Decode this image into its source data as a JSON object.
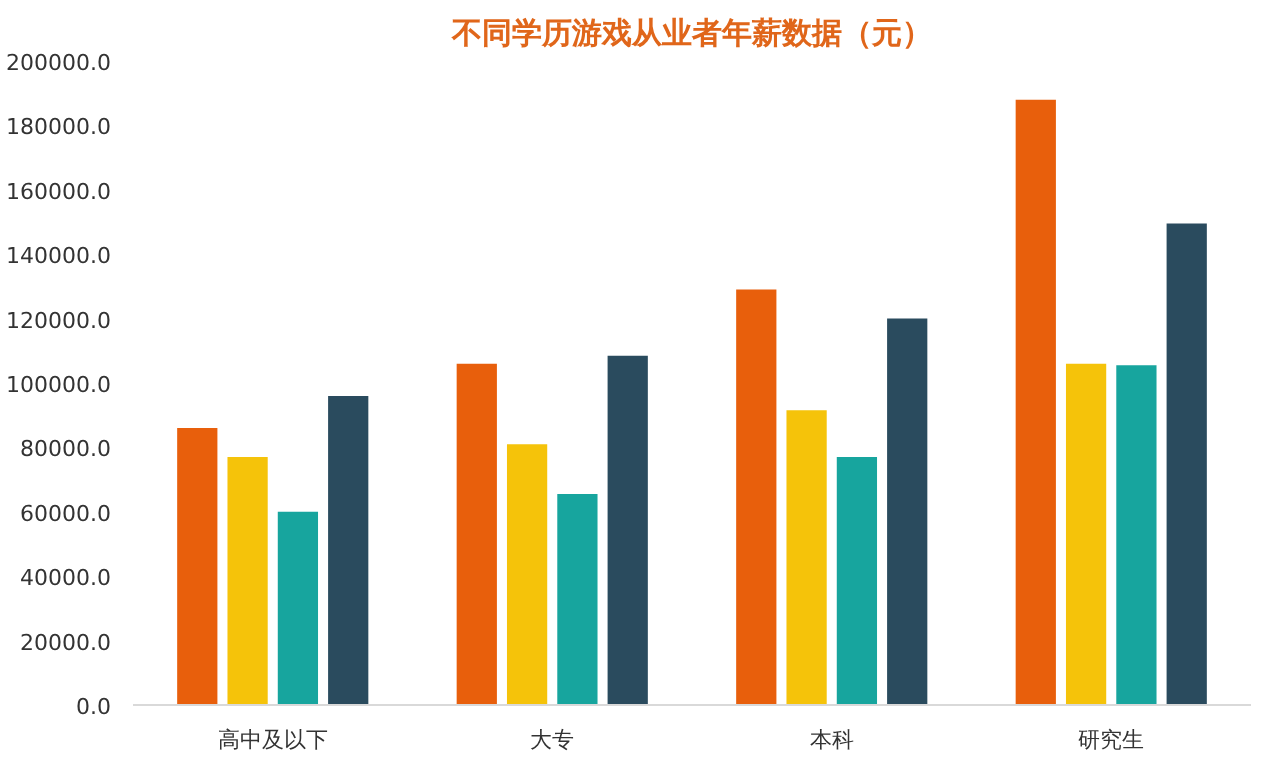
{
  "chart_data": {
    "type": "bar",
    "title": "不同学历游戏从业者年薪数据（元）",
    "categories": [
      "高中及以下",
      "大专",
      "本科",
      "研究生"
    ],
    "series": [
      {
        "color": "#e85f0c",
        "values": [
          86000,
          106000,
          129000,
          188000
        ]
      },
      {
        "color": "#f5c30a",
        "values": [
          77000,
          81000,
          91500,
          106000
        ]
      },
      {
        "color": "#17a59e",
        "values": [
          60000,
          65500,
          77000,
          105500
        ]
      },
      {
        "color": "#2a4b5e",
        "values": [
          96000,
          108500,
          120000,
          149500
        ]
      }
    ],
    "ylim": [
      0,
      200000
    ],
    "yticks": [
      {
        "value": 0,
        "label": "0.0"
      },
      {
        "value": 20000,
        "label": "20000.0"
      },
      {
        "value": 40000,
        "label": "40000.0"
      },
      {
        "value": 60000,
        "label": "60000.0"
      },
      {
        "value": 80000,
        "label": "80000.0"
      },
      {
        "value": 100000,
        "label": "100000.0"
      },
      {
        "value": 120000,
        "label": "120000.0"
      },
      {
        "value": 140000,
        "label": "140000.0"
      },
      {
        "value": 160000,
        "label": "160000.0"
      },
      {
        "value": 180000,
        "label": "180000.0"
      },
      {
        "value": 200000,
        "label": "200000.0"
      }
    ],
    "grid": false
  }
}
